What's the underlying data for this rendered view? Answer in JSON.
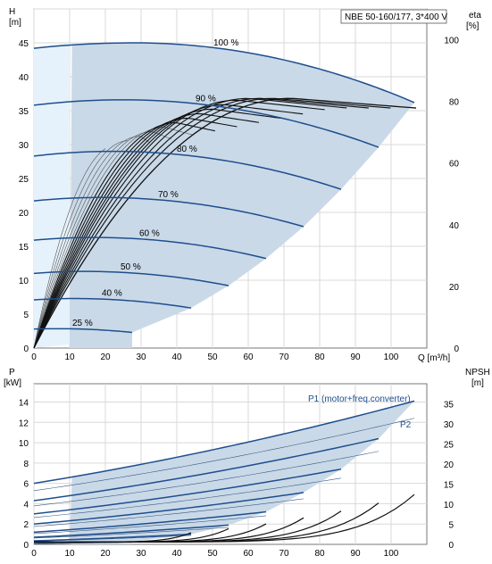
{
  "chart_data": [
    {
      "type": "line",
      "title": "NBE 50-160/177, 3*400 V",
      "xlabel": "Q [m³/h]",
      "ylabel_left": "H\n[m]",
      "ylabel_right": "eta\n[%]",
      "x_ticks": [
        0,
        10,
        20,
        30,
        40,
        50,
        60,
        70,
        80,
        90,
        100
      ],
      "y_ticks_left": [
        0,
        5,
        10,
        15,
        20,
        25,
        30,
        35,
        40,
        45
      ],
      "y_ticks_right": [
        0,
        20,
        40,
        60,
        80,
        100
      ],
      "xlim": [
        0,
        110
      ],
      "ylim_left": [
        0,
        50
      ],
      "ylim_right": [
        0,
        110
      ],
      "grid": true,
      "speed_curves": [
        {
          "name": "100 %",
          "shutoff": 44.2,
          "peak": 45.0,
          "peak_q": 28,
          "end_q": 106.5,
          "end_h": 36.2
        },
        {
          "name": "90 %",
          "shutoff": 35.8,
          "peak": 36.6,
          "peak_q": 25,
          "end_q": 96.5,
          "end_h": 29.6
        },
        {
          "name": "80 %",
          "shutoff": 28.3,
          "peak": 29.0,
          "peak_q": 22,
          "end_q": 86.0,
          "end_h": 23.4
        },
        {
          "name": "70 %",
          "shutoff": 21.7,
          "peak": 22.2,
          "peak_q": 19,
          "end_q": 75.5,
          "end_h": 17.9
        },
        {
          "name": "60 %",
          "shutoff": 15.9,
          "peak": 16.3,
          "peak_q": 17,
          "end_q": 65.0,
          "end_h": 13.2
        },
        {
          "name": "50 %",
          "shutoff": 11.0,
          "peak": 11.3,
          "peak_q": 14,
          "end_q": 54.5,
          "end_h": 9.2
        },
        {
          "name": "40 %",
          "shutoff": 7.1,
          "peak": 7.3,
          "peak_q": 11,
          "end_q": 44.0,
          "end_h": 5.9
        },
        {
          "name": "25 %",
          "shutoff": 2.8,
          "peak": 2.85,
          "peak_q": 7,
          "end_q": 27.5,
          "end_h": 2.3
        }
      ],
      "eta_curves": {
        "count": 14,
        "max_eta": 81,
        "min_eta": 62
      }
    },
    {
      "type": "line",
      "ylabel_left": "P\n[kW]",
      "ylabel_right": "NPSH\n[m]",
      "x_ticks": [
        0,
        10,
        20,
        30,
        40,
        50,
        60,
        70,
        80,
        90,
        100
      ],
      "y_ticks_left": [
        0,
        2,
        4,
        6,
        8,
        10,
        12,
        14
      ],
      "y_ticks_right": [
        0,
        5,
        10,
        15,
        20,
        25,
        30,
        35
      ],
      "xlim": [
        0,
        110
      ],
      "ylim_left": [
        0,
        15.8
      ],
      "ylim_right": [
        0,
        40
      ],
      "grid": true,
      "series_labels": {
        "p1": "P1 (motor+freq.converter)",
        "p2": "P2"
      },
      "p1_curves": [
        {
          "x0": 0,
          "y0": 6.0,
          "x1": 106.5,
          "y1": 14.1
        },
        {
          "x0": 0,
          "y0": 4.3,
          "x1": 96.5,
          "y1": 10.4
        },
        {
          "x0": 0,
          "y0": 3.0,
          "x1": 86.0,
          "y1": 7.4
        },
        {
          "x0": 0,
          "y0": 2.0,
          "x1": 75.5,
          "y1": 5.1
        },
        {
          "x0": 0,
          "y0": 1.2,
          "x1": 65.0,
          "y1": 3.2
        },
        {
          "x0": 0,
          "y0": 0.7,
          "x1": 54.5,
          "y1": 1.9
        },
        {
          "x0": 0,
          "y0": 0.35,
          "x1": 44.0,
          "y1": 1.0
        },
        {
          "x0": 0,
          "y0": 0.1,
          "x1": 27.5,
          "y1": 0.25
        }
      ],
      "npsh_curves": [
        {
          "end_q": 106.5,
          "end_npsh": 12.4
        },
        {
          "end_q": 96.5,
          "end_npsh": 10.3
        },
        {
          "end_q": 86.0,
          "end_npsh": 8.3
        },
        {
          "end_q": 75.5,
          "end_npsh": 6.6
        },
        {
          "end_q": 65.0,
          "end_npsh": 5.1
        },
        {
          "end_q": 54.5,
          "end_npsh": 3.9
        },
        {
          "end_q": 44.0,
          "end_npsh": 2.9
        }
      ]
    }
  ]
}
